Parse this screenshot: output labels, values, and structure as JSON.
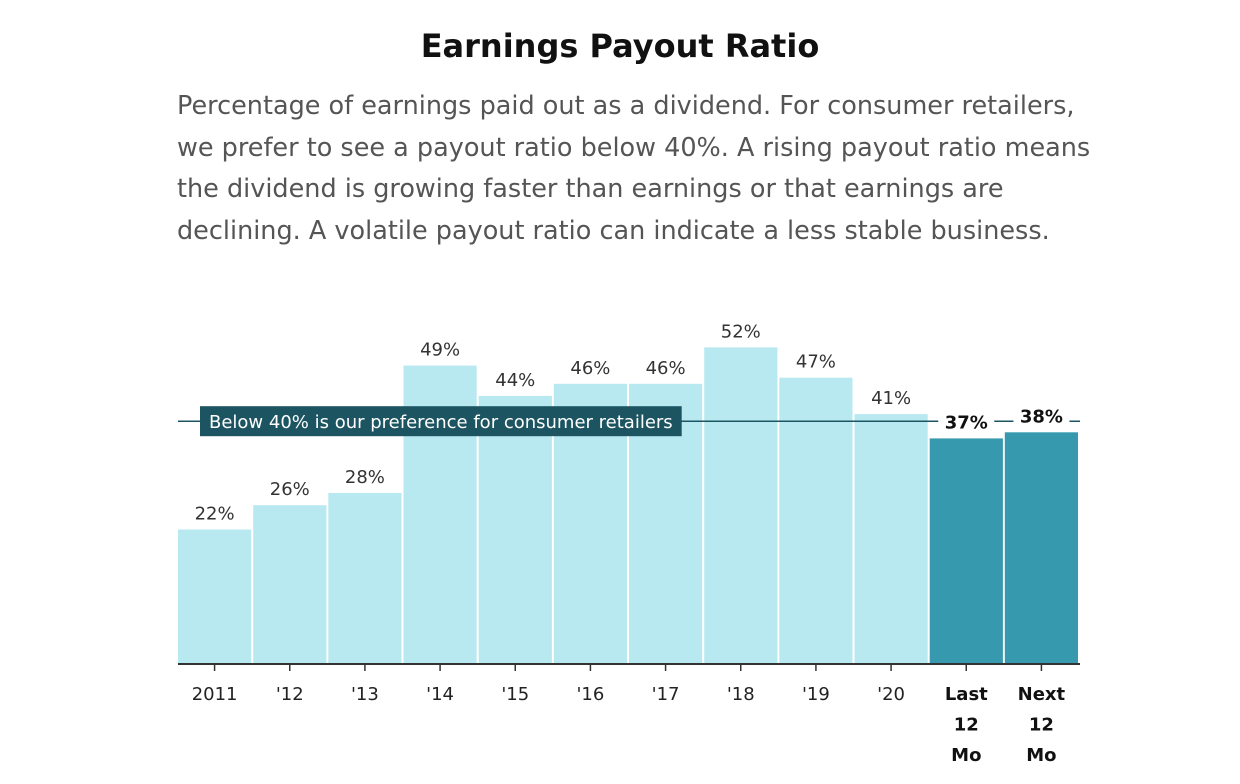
{
  "header": {
    "title": "Earnings Payout Ratio",
    "subtitle": "Percentage of earnings paid out as a dividend. For consumer retailers, we prefer to see a payout ratio below 40%. A rising payout ratio means the dividend is growing faster than earnings or that earnings are declining. A volatile payout ratio can indicate a less stable business."
  },
  "chart_data": {
    "type": "bar",
    "title": "Earnings Payout Ratio",
    "xlabel": "",
    "ylabel": "",
    "ylim": [
      0,
      60
    ],
    "grid": false,
    "categories": [
      "2011",
      "'12",
      "'13",
      "'14",
      "'15",
      "'16",
      "'17",
      "'18",
      "'19",
      "'20",
      "Last 12 Mo",
      "Next 12 Mo"
    ],
    "values": [
      22,
      26,
      28,
      49,
      44,
      46,
      46,
      52,
      47,
      41,
      37,
      38
    ],
    "value_labels": [
      "22%",
      "26%",
      "28%",
      "49%",
      "44%",
      "46%",
      "46%",
      "52%",
      "47%",
      "41%",
      "37%",
      "38%"
    ],
    "highlighted": [
      false,
      false,
      false,
      false,
      false,
      false,
      false,
      false,
      false,
      false,
      true,
      true
    ],
    "colors": {
      "bar": "#b8e9f0",
      "bar_highlight": "#3799ad",
      "reference": "#1c5561",
      "axis": "#333333"
    },
    "reference_line": {
      "value": 40,
      "label": "Below 40% is our preference for consumer retailers"
    }
  }
}
